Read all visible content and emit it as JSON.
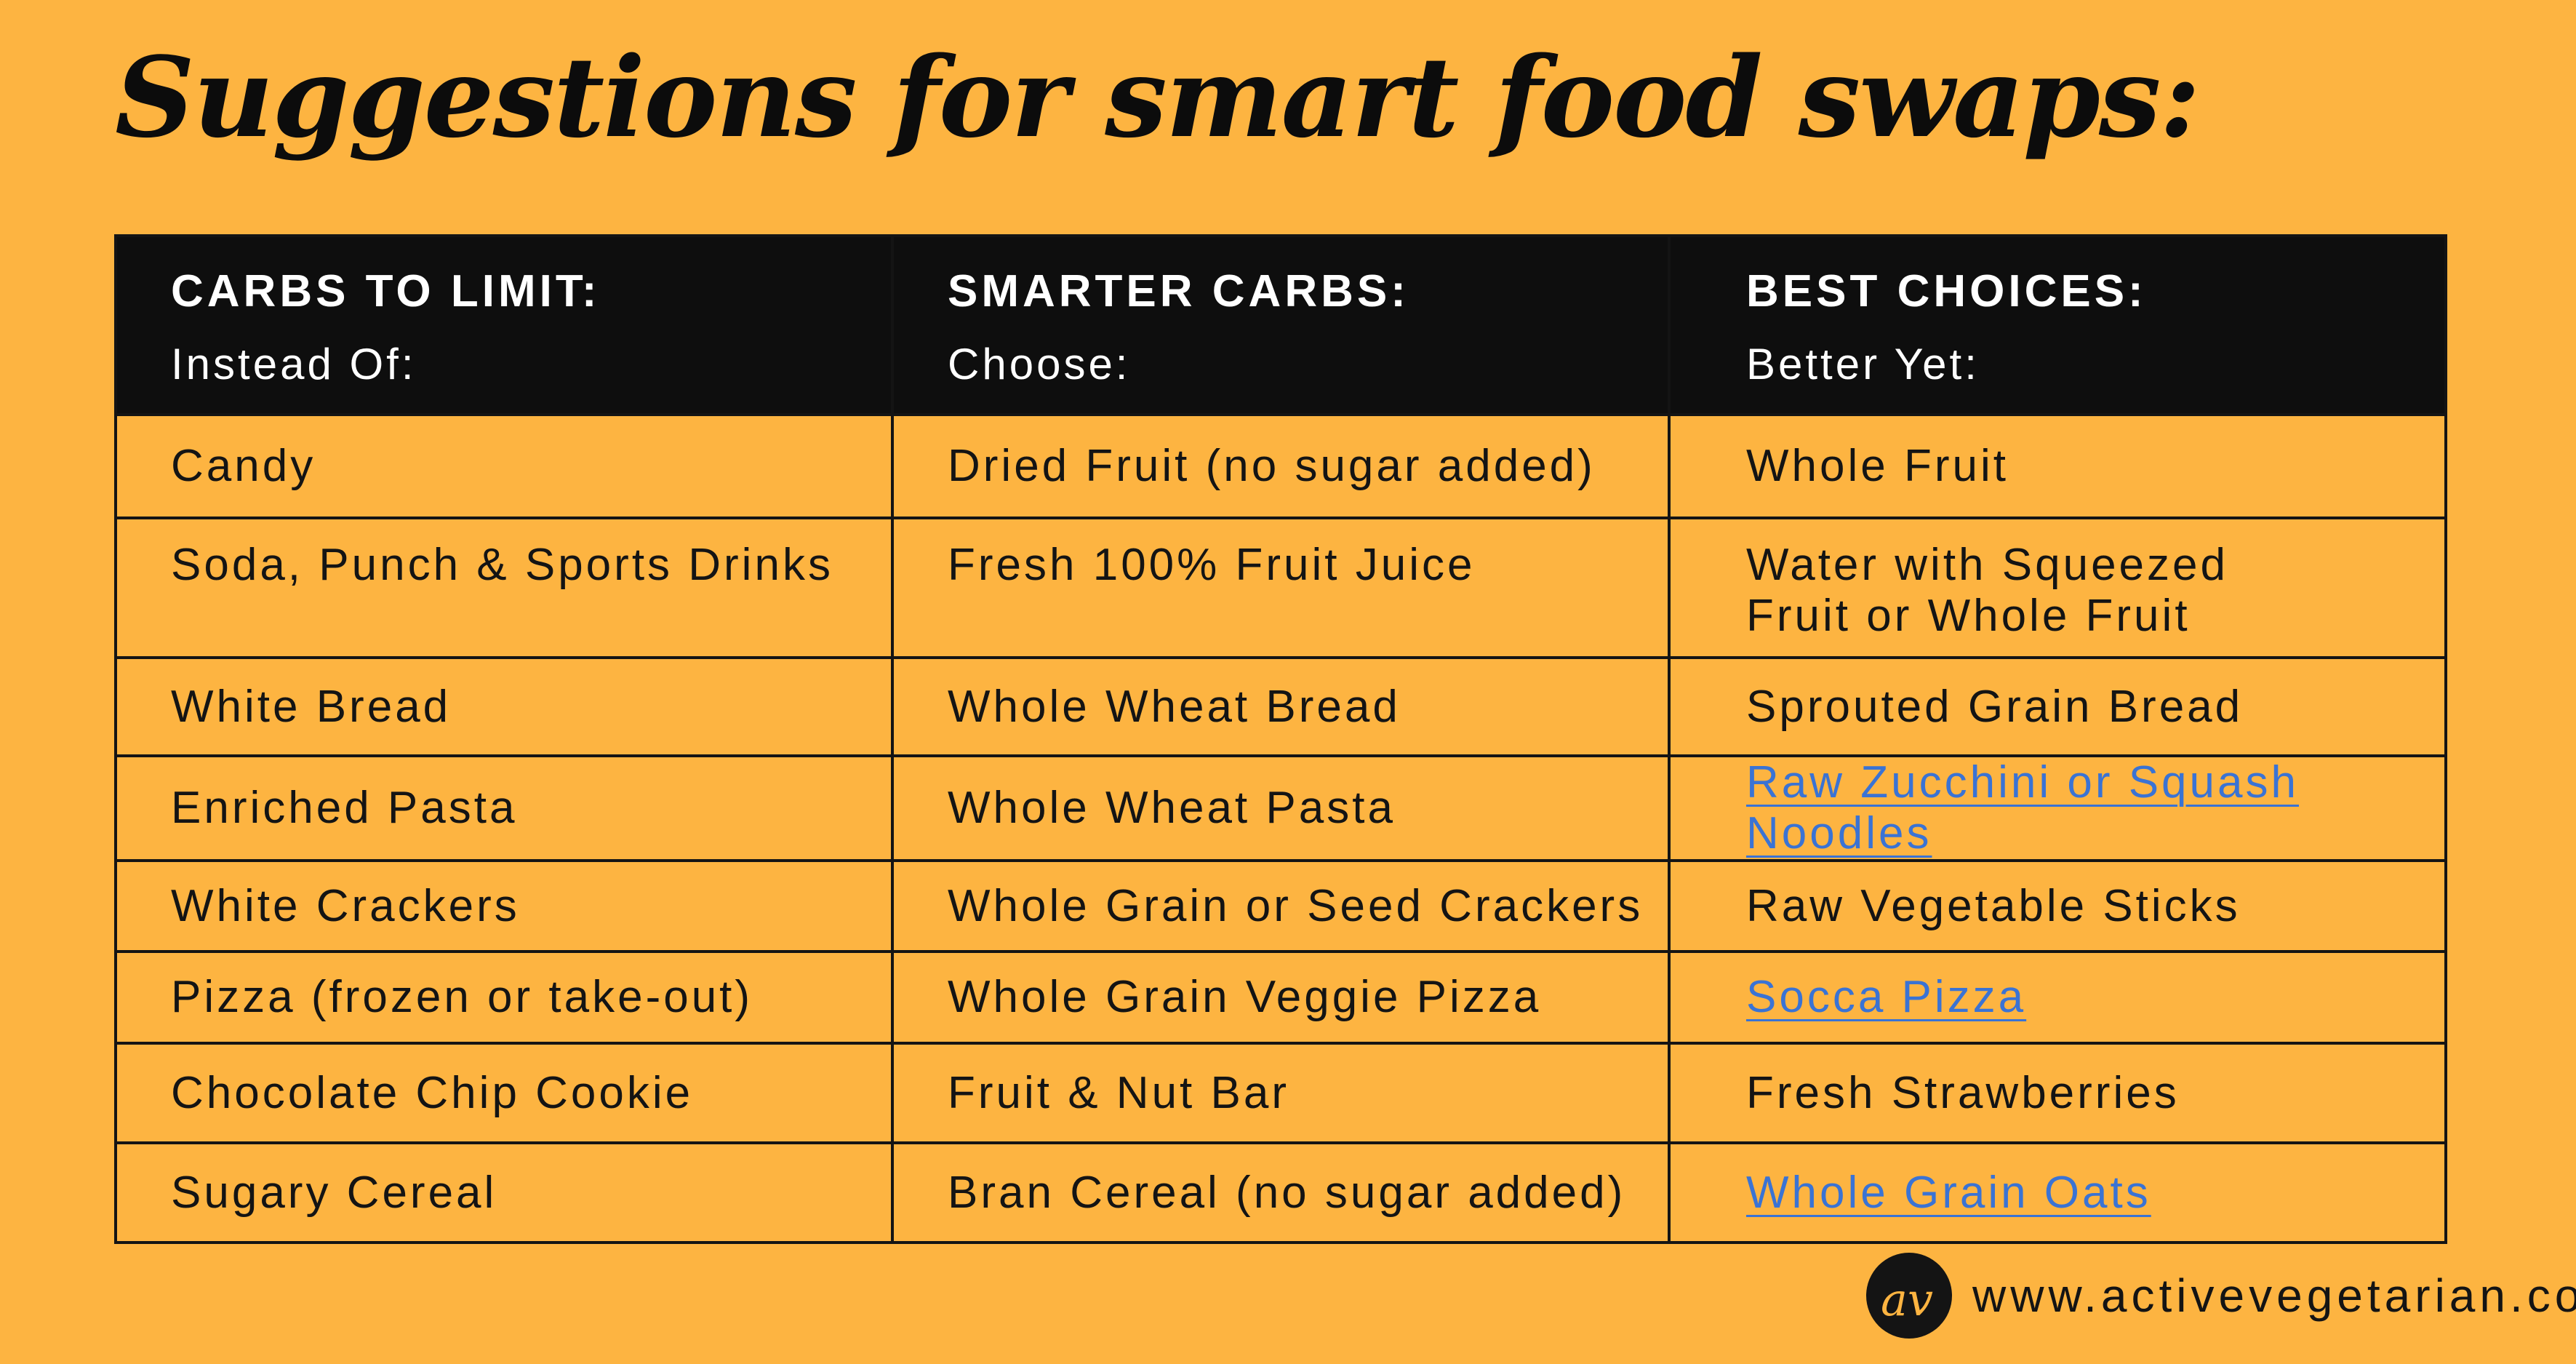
{
  "title": "Suggestions for smart food swaps:",
  "table": {
    "headers": [
      {
        "main": "CARBS TO LIMIT:",
        "sub": "Instead Of:"
      },
      {
        "main": "SMARTER CARBS:",
        "sub": "Choose:"
      },
      {
        "main": "BEST CHOICES:",
        "sub": "Better Yet:"
      }
    ],
    "rows": [
      [
        "Candy",
        "Dried Fruit (no sugar added)",
        "Whole Fruit"
      ],
      [
        "Soda, Punch & Sports Drinks",
        "Fresh 100% Fruit Juice",
        "Water with Squeezed Fruit or Whole Fruit"
      ],
      [
        "White Bread",
        "Whole Wheat Bread",
        "Sprouted Grain Bread"
      ],
      [
        "Enriched Pasta",
        "Whole Wheat Pasta",
        "Raw Zucchini or Squash Noodles"
      ],
      [
        "White Crackers",
        "Whole Grain or Seed Crackers",
        "Raw Vegetable Sticks"
      ],
      [
        "Pizza (frozen or take-out)",
        "Whole Grain Veggie Pizza",
        "Socca Pizza"
      ],
      [
        "Chocolate Chip Cookie",
        "Fruit & Nut Bar",
        "Fresh Strawberries"
      ],
      [
        "Sugary Cereal",
        "Bran Cereal (no sugar added)",
        "Whole Grain Oats"
      ]
    ]
  },
  "footer": {
    "logo_icon": "activevegetarian-av-logo",
    "logo_text": "av",
    "website": "www.activevegetarian.com"
  },
  "colors": {
    "background": "#FDB441",
    "header_background": "#0E0E0E",
    "link": "#3A73D4",
    "text": "#141414"
  }
}
